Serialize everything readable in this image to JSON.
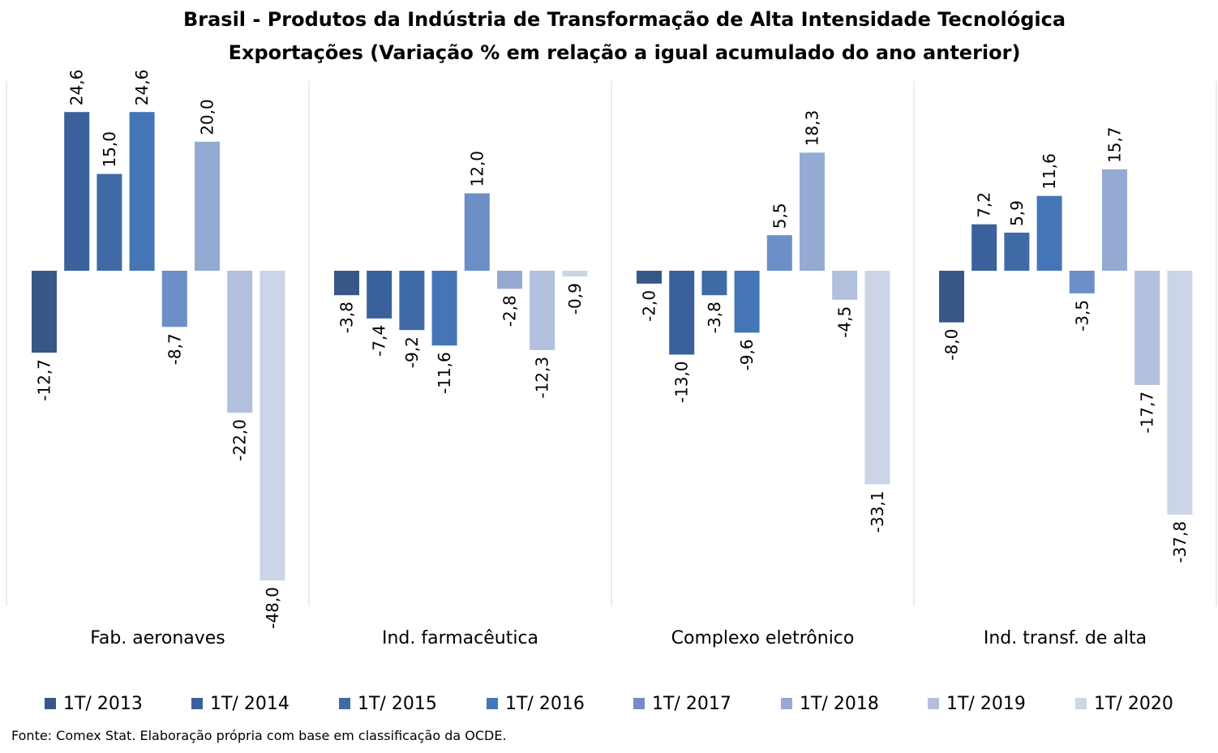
{
  "title_line1": "Brasil - Produtos da Indústria de Transformação de Alta Intensidade Tecnológica",
  "title_line2": "Exportações (Variação % em relação a igual acumulado do ano anterior)",
  "source": "Fonte: Comex Stat. Elaboração própria com base em classificação da OCDE.",
  "chart_data": {
    "type": "bar",
    "title": "Brasil - Produtos da Indústria de Transformação de Alta Intensidade Tecnológica",
    "subtitle": "Exportações (Variação % em relação a igual acumulado do ano anterior)",
    "xlabel": "",
    "ylabel": "",
    "grid": false,
    "legend_position": "bottom",
    "categories": [
      "Fab. aeronaves",
      "Ind. farmacêutica",
      "Complexo eletrônico",
      "Ind. transf. de alta"
    ],
    "series": [
      {
        "name": "1T/ 2013",
        "color": "#375887",
        "values": [
          -12.7,
          -3.8,
          -2.0,
          -8.0
        ],
        "labels": [
          "-12,7",
          "-3,8",
          "-2,0",
          "-8,0"
        ]
      },
      {
        "name": "1T/ 2014",
        "color": "#3a619b",
        "values": [
          24.6,
          -7.4,
          -13.0,
          7.2
        ],
        "labels": [
          "24,6",
          "-7,4",
          "-13,0",
          "7,2"
        ]
      },
      {
        "name": "1T/ 2015",
        "color": "#3f6aa6",
        "values": [
          15.0,
          -9.2,
          -3.8,
          5.9
        ],
        "labels": [
          "15,0",
          "-9,2",
          "-3,8",
          "5,9"
        ]
      },
      {
        "name": "1T/ 2016",
        "color": "#4476b7",
        "values": [
          24.6,
          -11.6,
          -9.6,
          11.6
        ],
        "labels": [
          "24,6",
          "-11,6",
          "-9,6",
          "11,6"
        ]
      },
      {
        "name": "1T/ 2017",
        "color": "#6b8fc6",
        "values": [
          -8.7,
          12.0,
          5.5,
          -3.5
        ],
        "labels": [
          "-8,7",
          "12,0",
          "5,5",
          "-3,5"
        ]
      },
      {
        "name": "1T/ 2018",
        "color": "#94aad3",
        "values": [
          20.0,
          -2.8,
          18.3,
          15.7
        ],
        "labels": [
          "20,0",
          "-2,8",
          "18,3",
          "15,7"
        ]
      },
      {
        "name": "1T/ 2019",
        "color": "#b2c0dd",
        "values": [
          -22.0,
          -12.3,
          -4.5,
          -17.7
        ],
        "labels": [
          "-22,0",
          "-12,3",
          "-4,5",
          "-17,7"
        ]
      },
      {
        "name": "1T/ 2020",
        "color": "#ccd5e7",
        "values": [
          -48.0,
          -0.9,
          -33.1,
          -37.8
        ],
        "labels": [
          "-48,0",
          "-0,9",
          "-33,1",
          "-37,8"
        ]
      }
    ]
  }
}
